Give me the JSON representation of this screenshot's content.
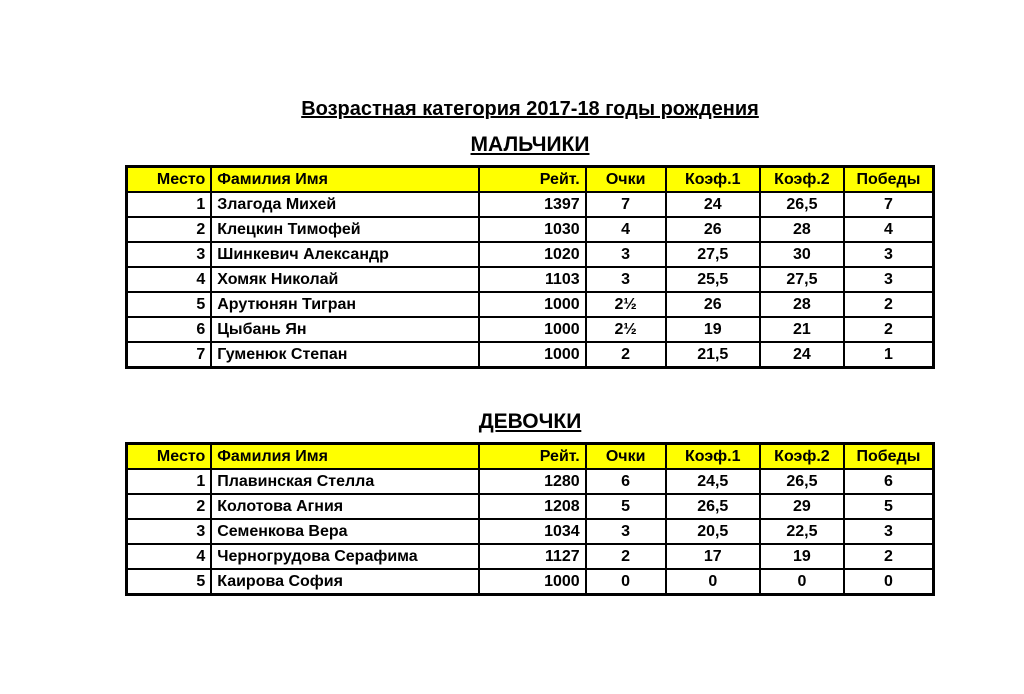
{
  "page": {
    "title": "Возрастная категория 2017-18 годы рождения"
  },
  "columns": [
    "Место",
    "Фамилия Имя",
    "Рейт.",
    "Очки",
    "Коэф.1",
    "Коэф.2",
    "Победы"
  ],
  "tables": [
    {
      "heading": "МАЛЬЧИКИ",
      "rows": [
        [
          "1",
          "Злагода Михей",
          "1397",
          "7",
          "24",
          "26,5",
          "7"
        ],
        [
          "2",
          "Клецкин Тимофей",
          "1030",
          "4",
          "26",
          "28",
          "4"
        ],
        [
          "3",
          "Шинкевич Александр",
          "1020",
          "3",
          "27,5",
          "30",
          "3"
        ],
        [
          "4",
          "Хомяк Николай",
          "1103",
          "3",
          "25,5",
          "27,5",
          "3"
        ],
        [
          "5",
          "Арутюнян Тигран",
          "1000",
          "2½",
          "26",
          "28",
          "2"
        ],
        [
          "6",
          "Цыбань Ян",
          "1000",
          "2½",
          "19",
          "21",
          "2"
        ],
        [
          "7",
          "Гуменюк Степан",
          "1000",
          "2",
          "21,5",
          "24",
          "1"
        ]
      ]
    },
    {
      "heading": "ДЕВОЧКИ",
      "rows": [
        [
          "1",
          "Плавинская Стелла",
          "1280",
          "6",
          "24,5",
          "26,5",
          "6"
        ],
        [
          "2",
          "Колотова Агния",
          "1208",
          "5",
          "26,5",
          "29",
          "5"
        ],
        [
          "3",
          "Семенкова Вера",
          "1034",
          "3",
          "20,5",
          "22,5",
          "3"
        ],
        [
          "4",
          "Черногрудова Серафима",
          "1127",
          "2",
          "17",
          "19",
          "2"
        ],
        [
          "5",
          "Каирова София",
          "1000",
          "0",
          "0",
          "0",
          "0"
        ]
      ]
    }
  ],
  "colors": {
    "header_bg": "#FFFF00",
    "border": "#000000",
    "text": "#000000",
    "background": "#FFFFFF"
  }
}
